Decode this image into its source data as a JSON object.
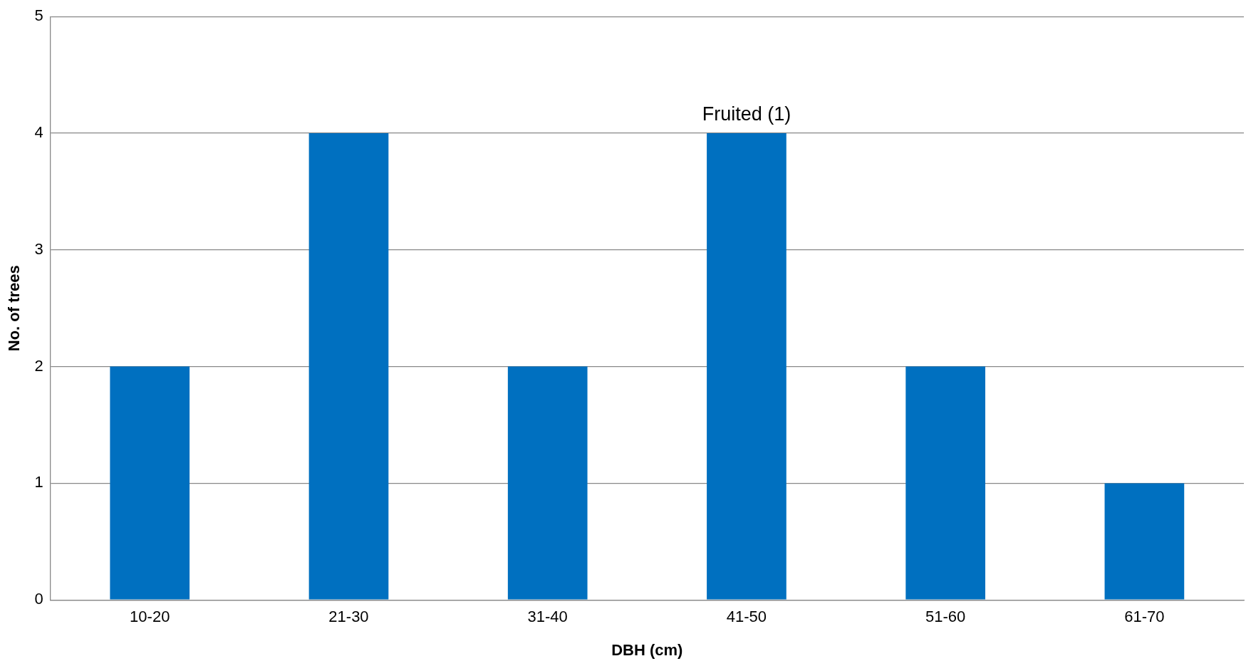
{
  "chart_data": {
    "type": "bar",
    "xlabel": "DBH (cm)",
    "ylabel": "No. of trees",
    "categories": [
      "10-20",
      "21-30",
      "31-40",
      "41-50",
      "51-60",
      "61-70"
    ],
    "values": [
      2,
      4,
      2,
      4,
      2,
      1
    ],
    "color": "#0070c0",
    "ylim": [
      0,
      5
    ],
    "yticks": [
      0,
      1,
      2,
      3,
      4,
      5
    ],
    "grid": "y",
    "legend": false,
    "annotations": [
      {
        "text": "Fruited (1)",
        "x": "41-50",
        "y": 4
      }
    ]
  }
}
